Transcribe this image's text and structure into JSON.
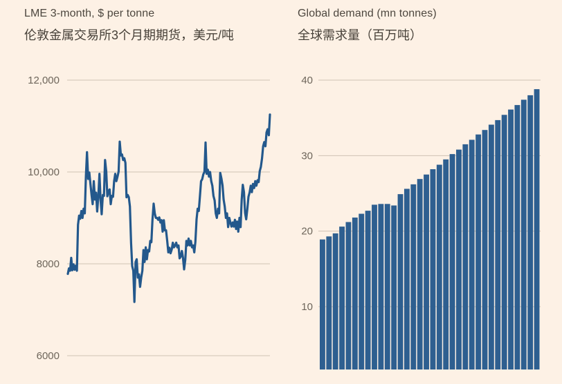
{
  "page": {
    "background": "#fdf1e5"
  },
  "colors": {
    "line": "#23588c",
    "bar": "#2e5f90",
    "grid": "#cfc2b4",
    "tick_label": "#6e665b",
    "title": "#4d473f"
  },
  "lme": {
    "title_en": "LME 3-month, $ per tonne",
    "title_zh": "伦敦金属交易所3个月期期货，美元/吨"
  },
  "demand": {
    "title_en": "Global demand (mn tonnes)",
    "title_zh": "全球需求量（百万吨）"
  },
  "chart_data": [
    {
      "type": "line",
      "title": "LME 3-month, $ per tonne",
      "title_zh": "伦敦金属交易所3个月期期货，美元/吨",
      "ylabel": "$ per tonne",
      "ylim": [
        6000,
        12000
      ],
      "grid": true,
      "legend": "none",
      "y_ticks": [
        {
          "value": 12000,
          "label": "12,000"
        },
        {
          "value": 10000,
          "label": "10,000"
        },
        {
          "value": 8000,
          "label": "8000"
        },
        {
          "value": 6000,
          "label": "6000"
        }
      ],
      "values": [
        7780,
        7900,
        7850,
        8130,
        7860,
        7990,
        7870,
        7960,
        7850,
        8850,
        9050,
        8980,
        9150,
        9000,
        9200,
        9100,
        9900,
        10430,
        9850,
        9990,
        9750,
        9500,
        9300,
        9800,
        9400,
        9550,
        9140,
        9450,
        9960,
        9400,
        9080,
        9500,
        9480,
        10260,
        10010,
        9470,
        9580,
        9620,
        9300,
        9480,
        9460,
        9800,
        9960,
        9800,
        9900,
        10010,
        10660,
        10360,
        10380,
        10260,
        10300,
        10200,
        9450,
        9500,
        9450,
        9250,
        8450,
        7950,
        7850,
        7170,
        8040,
        8100,
        7700,
        7770,
        7500,
        7700,
        7850,
        8300,
        8040,
        8360,
        8100,
        8300,
        8270,
        8500,
        8470,
        8960,
        9310,
        9100,
        9000,
        9000,
        8960,
        9010,
        8900,
        8950,
        8700,
        8950,
        8730,
        8730,
        8500,
        8250,
        8350,
        8230,
        8310,
        8460,
        8360,
        8400,
        8460,
        8360,
        8400,
        8120,
        8160,
        8280,
        8130,
        7880,
        8090,
        8500,
        8400,
        8550,
        8400,
        8500,
        8360,
        8400,
        8250,
        8480,
        8970,
        9200,
        9150,
        9480,
        9800,
        9840,
        9950,
        10000,
        10640,
        9960,
        10050,
        9900,
        10000,
        9800,
        9700,
        9480,
        9380,
        9100,
        9000,
        9200,
        9100,
        9980,
        9860,
        9710,
        9400,
        9250,
        9000,
        9100,
        8800,
        9000,
        8900,
        8810,
        8900,
        8810,
        8960,
        8760,
        8920,
        8700,
        9000,
        8800,
        9400,
        9720,
        9560,
        9110,
        8970,
        9200,
        9460,
        9550,
        9700,
        9560,
        9740,
        9650,
        9800,
        9700,
        9820,
        9780,
        10020,
        10110,
        10300,
        10560,
        10650,
        10560,
        10860,
        10930,
        10800,
        11250
      ]
    },
    {
      "type": "bar",
      "title": "Global demand (mn tonnes)",
      "title_zh": "全球需求量（百万吨）",
      "ylabel": "mn tonnes",
      "ylim": [
        0,
        40
      ],
      "grid": true,
      "legend": "none",
      "y_ticks": [
        {
          "value": 40,
          "label": "40"
        },
        {
          "value": 30,
          "label": "30"
        },
        {
          "value": 20,
          "label": "20"
        },
        {
          "value": 10,
          "label": "10"
        }
      ],
      "values": [
        18.9,
        19.3,
        19.7,
        20.6,
        21.2,
        21.8,
        22.3,
        22.7,
        23.5,
        23.6,
        23.6,
        23.4,
        24.9,
        25.6,
        26.2,
        26.9,
        27.5,
        28.2,
        28.8,
        29.5,
        30.2,
        30.8,
        31.5,
        32.1,
        32.8,
        33.4,
        34.1,
        34.7,
        35.4,
        36.1,
        36.7,
        37.4,
        38.0,
        38.8
      ]
    }
  ]
}
